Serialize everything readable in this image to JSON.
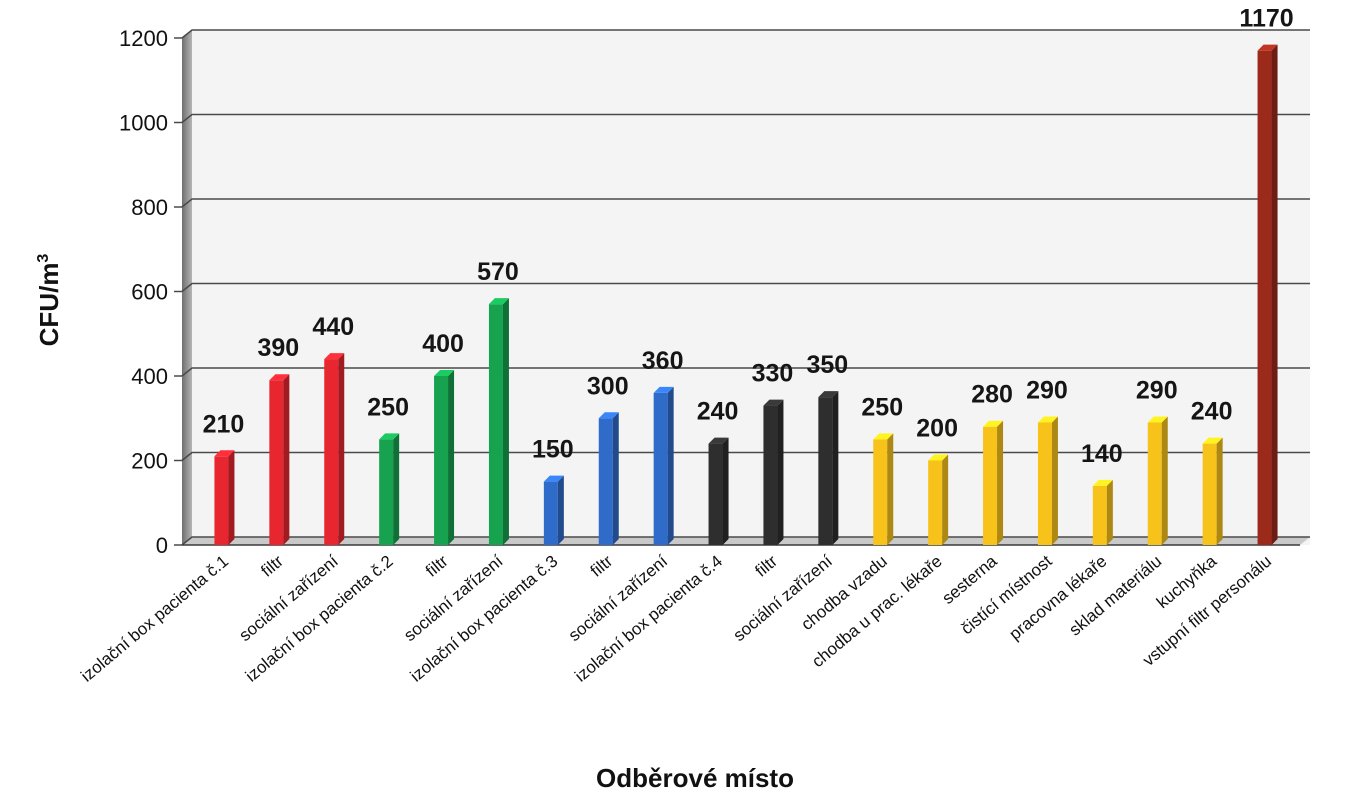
{
  "chart_data": {
    "type": "bar",
    "title": "",
    "xlabel": "Odběrové místo",
    "ylabel": "CFU/m",
    "ylabel_superscript": "3",
    "ylim": [
      0,
      1200
    ],
    "yticks": [
      0,
      200,
      400,
      600,
      800,
      1000,
      1200
    ],
    "grid": true,
    "legend": "none",
    "categories": [
      "izolační box pacienta č.1",
      "filtr",
      "sociální zařízení",
      "izolační box pacienta č.2",
      "filtr",
      "sociální zařízení",
      "izolační box pacienta č.3",
      "filtr",
      "sociální zařízení",
      "izolační box pacienta č.4",
      "filtr",
      "sociální zařízení",
      "chodba vzadu",
      "chodba u prac. lékaře",
      "sesterna",
      "čistící místnost",
      "pracovna lékaře",
      "sklad materiálu",
      "kuchyňka",
      "vstupní filtr personálu"
    ],
    "values": [
      210,
      390,
      440,
      250,
      400,
      570,
      150,
      300,
      360,
      240,
      330,
      350,
      250,
      200,
      280,
      290,
      140,
      290,
      240,
      1170
    ],
    "bar_colors": [
      "#e8262f",
      "#e8262f",
      "#e8262f",
      "#17a24f",
      "#17a24f",
      "#17a24f",
      "#2f6bc9",
      "#2f6bc9",
      "#2f6bc9",
      "#2e2e2e",
      "#2e2e2e",
      "#2e2e2e",
      "#f7c21a",
      "#f7c21a",
      "#f7c21a",
      "#f7c21a",
      "#f7c21a",
      "#f7c21a",
      "#f7c21a",
      "#9b2a1b"
    ],
    "colors": {
      "plot_background": "#f4f4f4",
      "gridline": "#4a4a4a",
      "wall": "#8e8e8e",
      "floor": "#c9c9c9"
    }
  }
}
